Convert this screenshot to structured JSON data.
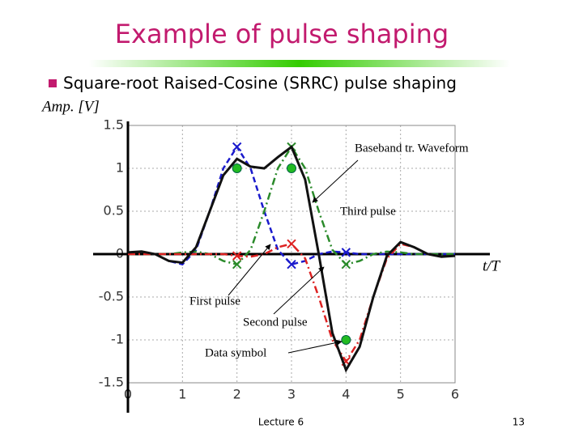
{
  "slide": {
    "title": "Example of pulse shaping",
    "bullet": "Square-root Raised-Cosine (SRRC) pulse shaping",
    "footer": "Lecture 6",
    "page": "13"
  },
  "chart_data": {
    "type": "line",
    "y_label": "Amp. [V]",
    "x_label": "t/T",
    "x": [
      0,
      0.25,
      0.5,
      0.75,
      1,
      1.25,
      1.5,
      1.75,
      2,
      2.25,
      2.5,
      2.75,
      3,
      3.25,
      3.5,
      3.75,
      4,
      4.25,
      4.5,
      4.75,
      5,
      5.25,
      5.5,
      5.75,
      6
    ],
    "xlim": [
      0,
      6
    ],
    "xticks": [
      0,
      1,
      2,
      3,
      4,
      5,
      6
    ],
    "ylim": [
      -1.5,
      1.5
    ],
    "yticks": [
      1.5,
      1,
      0.5,
      0,
      -0.5,
      -1,
      -1.5
    ],
    "grid": true,
    "series": [
      {
        "color": "#1a1acc",
        "style": "dashed",
        "values": [
          0.02,
          0.03,
          0,
          -0.08,
          -0.12,
          0.05,
          0.5,
          1.0,
          1.25,
          1.0,
          0.5,
          0.05,
          -0.12,
          -0.08,
          0,
          0.03,
          0.02,
          0,
          0,
          0,
          0,
          0,
          0,
          0,
          0
        ]
      },
      {
        "color": "#2a8a2a",
        "style": "dashdot",
        "values": [
          0,
          0,
          0,
          0,
          0.02,
          0.03,
          0,
          -0.08,
          -0.12,
          0.05,
          0.5,
          1.0,
          1.25,
          1.0,
          0.5,
          0.05,
          -0.12,
          -0.08,
          0,
          0.03,
          0.02,
          0,
          0,
          0,
          0
        ]
      },
      {
        "color": "#dd2222",
        "style": "dashdot",
        "values": [
          0,
          0,
          0,
          0,
          0,
          0,
          0,
          0,
          -0.02,
          -0.03,
          0,
          0.08,
          0.12,
          -0.05,
          -0.5,
          -1.0,
          -1.25,
          -1.0,
          -0.5,
          -0.05,
          0.12,
          0.08,
          0,
          -0.03,
          -0.02
        ]
      },
      {
        "color": "#111111",
        "style": "solid",
        "values": [
          0.02,
          0.03,
          0,
          -0.08,
          -0.1,
          0.08,
          0.5,
          0.92,
          1.11,
          1.02,
          1.0,
          1.13,
          1.25,
          0.87,
          0,
          -0.92,
          -1.35,
          -1.08,
          -0.5,
          -0.02,
          0.14,
          0.08,
          0,
          -0.03,
          -0.02
        ]
      }
    ],
    "symbols": {
      "color": "#22bb22",
      "x": [
        2,
        3,
        4
      ],
      "values": [
        1,
        1,
        -1
      ]
    },
    "annotations": [
      "Baseband tr. Waveform",
      "Third pulse",
      "First pulse",
      "Second pulse",
      "Data symbol"
    ]
  }
}
